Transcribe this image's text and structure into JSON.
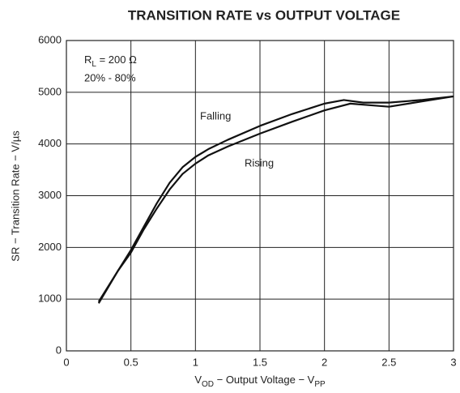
{
  "chart_data": {
    "type": "line",
    "title": "TRANSITION RATE vs OUTPUT VOLTAGE",
    "x_label": [
      "V",
      "OD",
      " − Output Voltage − V",
      "PP"
    ],
    "y_label": "SR − Transition Rate − V/µs",
    "rl_label": [
      "R",
      "L",
      " = 200 Ω"
    ],
    "annotations": [
      "20% - 80%",
      "Falling",
      "Rising"
    ],
    "xlim": [
      0,
      3
    ],
    "xticks": [
      0,
      0.5,
      1,
      1.5,
      2,
      2.5,
      3
    ],
    "ylim": [
      0,
      6000
    ],
    "yticks": [
      0,
      1000,
      2000,
      3000,
      4000,
      5000,
      6000
    ],
    "grid": true,
    "series": [
      {
        "name": "Falling",
        "color": "#111111",
        "x": [
          0.25,
          0.4,
          0.5,
          0.6,
          0.7,
          0.8,
          0.9,
          1.0,
          1.1,
          1.25,
          1.5,
          1.75,
          2.0,
          2.15,
          2.3,
          2.5,
          2.75,
          3.0
        ],
        "values": [
          950,
          1550,
          1950,
          2400,
          2850,
          3250,
          3550,
          3750,
          3900,
          4080,
          4350,
          4580,
          4780,
          4850,
          4800,
          4800,
          4850,
          4920
        ]
      },
      {
        "name": "Rising",
        "color": "#111111",
        "x": [
          0.25,
          0.4,
          0.5,
          0.6,
          0.7,
          0.8,
          0.9,
          1.0,
          1.1,
          1.25,
          1.5,
          1.75,
          2.0,
          2.2,
          2.35,
          2.5,
          2.75,
          3.0
        ],
        "values": [
          920,
          1550,
          1900,
          2350,
          2750,
          3120,
          3420,
          3620,
          3780,
          3950,
          4200,
          4430,
          4650,
          4780,
          4750,
          4720,
          4820,
          4920
        ]
      }
    ]
  }
}
